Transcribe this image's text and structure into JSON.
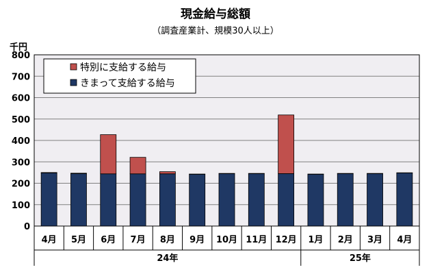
{
  "chart_data": {
    "type": "bar",
    "stacked": true,
    "title": "現金給与総額",
    "subtitle": "（調査産業計、規模30人以上）",
    "yunit": "千円",
    "ylim": [
      0,
      800
    ],
    "yticks": [
      0,
      100,
      200,
      300,
      400,
      500,
      600,
      700,
      800
    ],
    "grid": true,
    "legend_position": "top-left",
    "categories": [
      "4月",
      "5月",
      "6月",
      "7月",
      "8月",
      "9月",
      "10月",
      "11月",
      "12月",
      "1月",
      "2月",
      "3月",
      "4月"
    ],
    "year_groups": [
      {
        "label": "24年",
        "start": 0,
        "end": 8
      },
      {
        "label": "25年",
        "start": 9,
        "end": 12
      }
    ],
    "series": [
      {
        "name": "きまって支給する給与",
        "color": "#1f3864",
        "values": [
          248,
          245,
          244,
          244,
          244,
          242,
          245,
          245,
          245,
          242,
          245,
          245,
          248
        ]
      },
      {
        "name": "特別に支給する給与",
        "color": "#c0504d",
        "values": [
          2,
          2,
          183,
          77,
          10,
          1,
          1,
          1,
          274,
          1,
          1,
          1,
          1
        ]
      }
    ],
    "colors": {
      "plot_bg": "#f0eef2",
      "grid": "#808080",
      "frame": "#000000"
    }
  }
}
